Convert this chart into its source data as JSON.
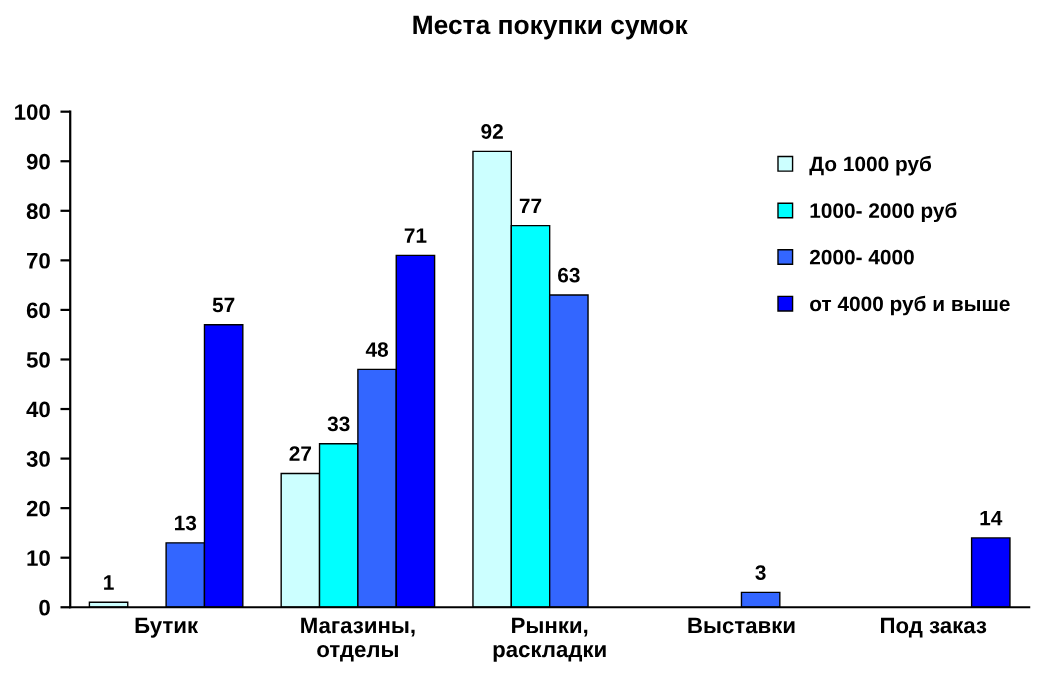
{
  "chart_data": {
    "type": "bar",
    "title": "Места покупки сумок",
    "categories": [
      "Бутик",
      "Магазины,\nотделы",
      "Рынки,\nраскладки",
      "Выставки",
      "Под заказ"
    ],
    "series": [
      {
        "name": "До 1000 руб",
        "color": "#ccffff",
        "values": [
          1,
          27,
          92,
          null,
          null
        ]
      },
      {
        "name": "1000- 2000 руб",
        "color": "#00ffff",
        "values": [
          null,
          33,
          77,
          null,
          null
        ]
      },
      {
        "name": "2000- 4000",
        "color": "#3366ff",
        "values": [
          13,
          48,
          63,
          3,
          null
        ]
      },
      {
        "name": "от 4000 руб и выше",
        "color": "#0000ff",
        "values": [
          57,
          71,
          null,
          null,
          14
        ]
      }
    ],
    "ylim": [
      0,
      100
    ],
    "yticks": [
      0,
      10,
      20,
      30,
      40,
      50,
      60,
      70,
      80,
      90,
      100
    ],
    "data_labels": true,
    "grid": false,
    "legend": "right"
  }
}
